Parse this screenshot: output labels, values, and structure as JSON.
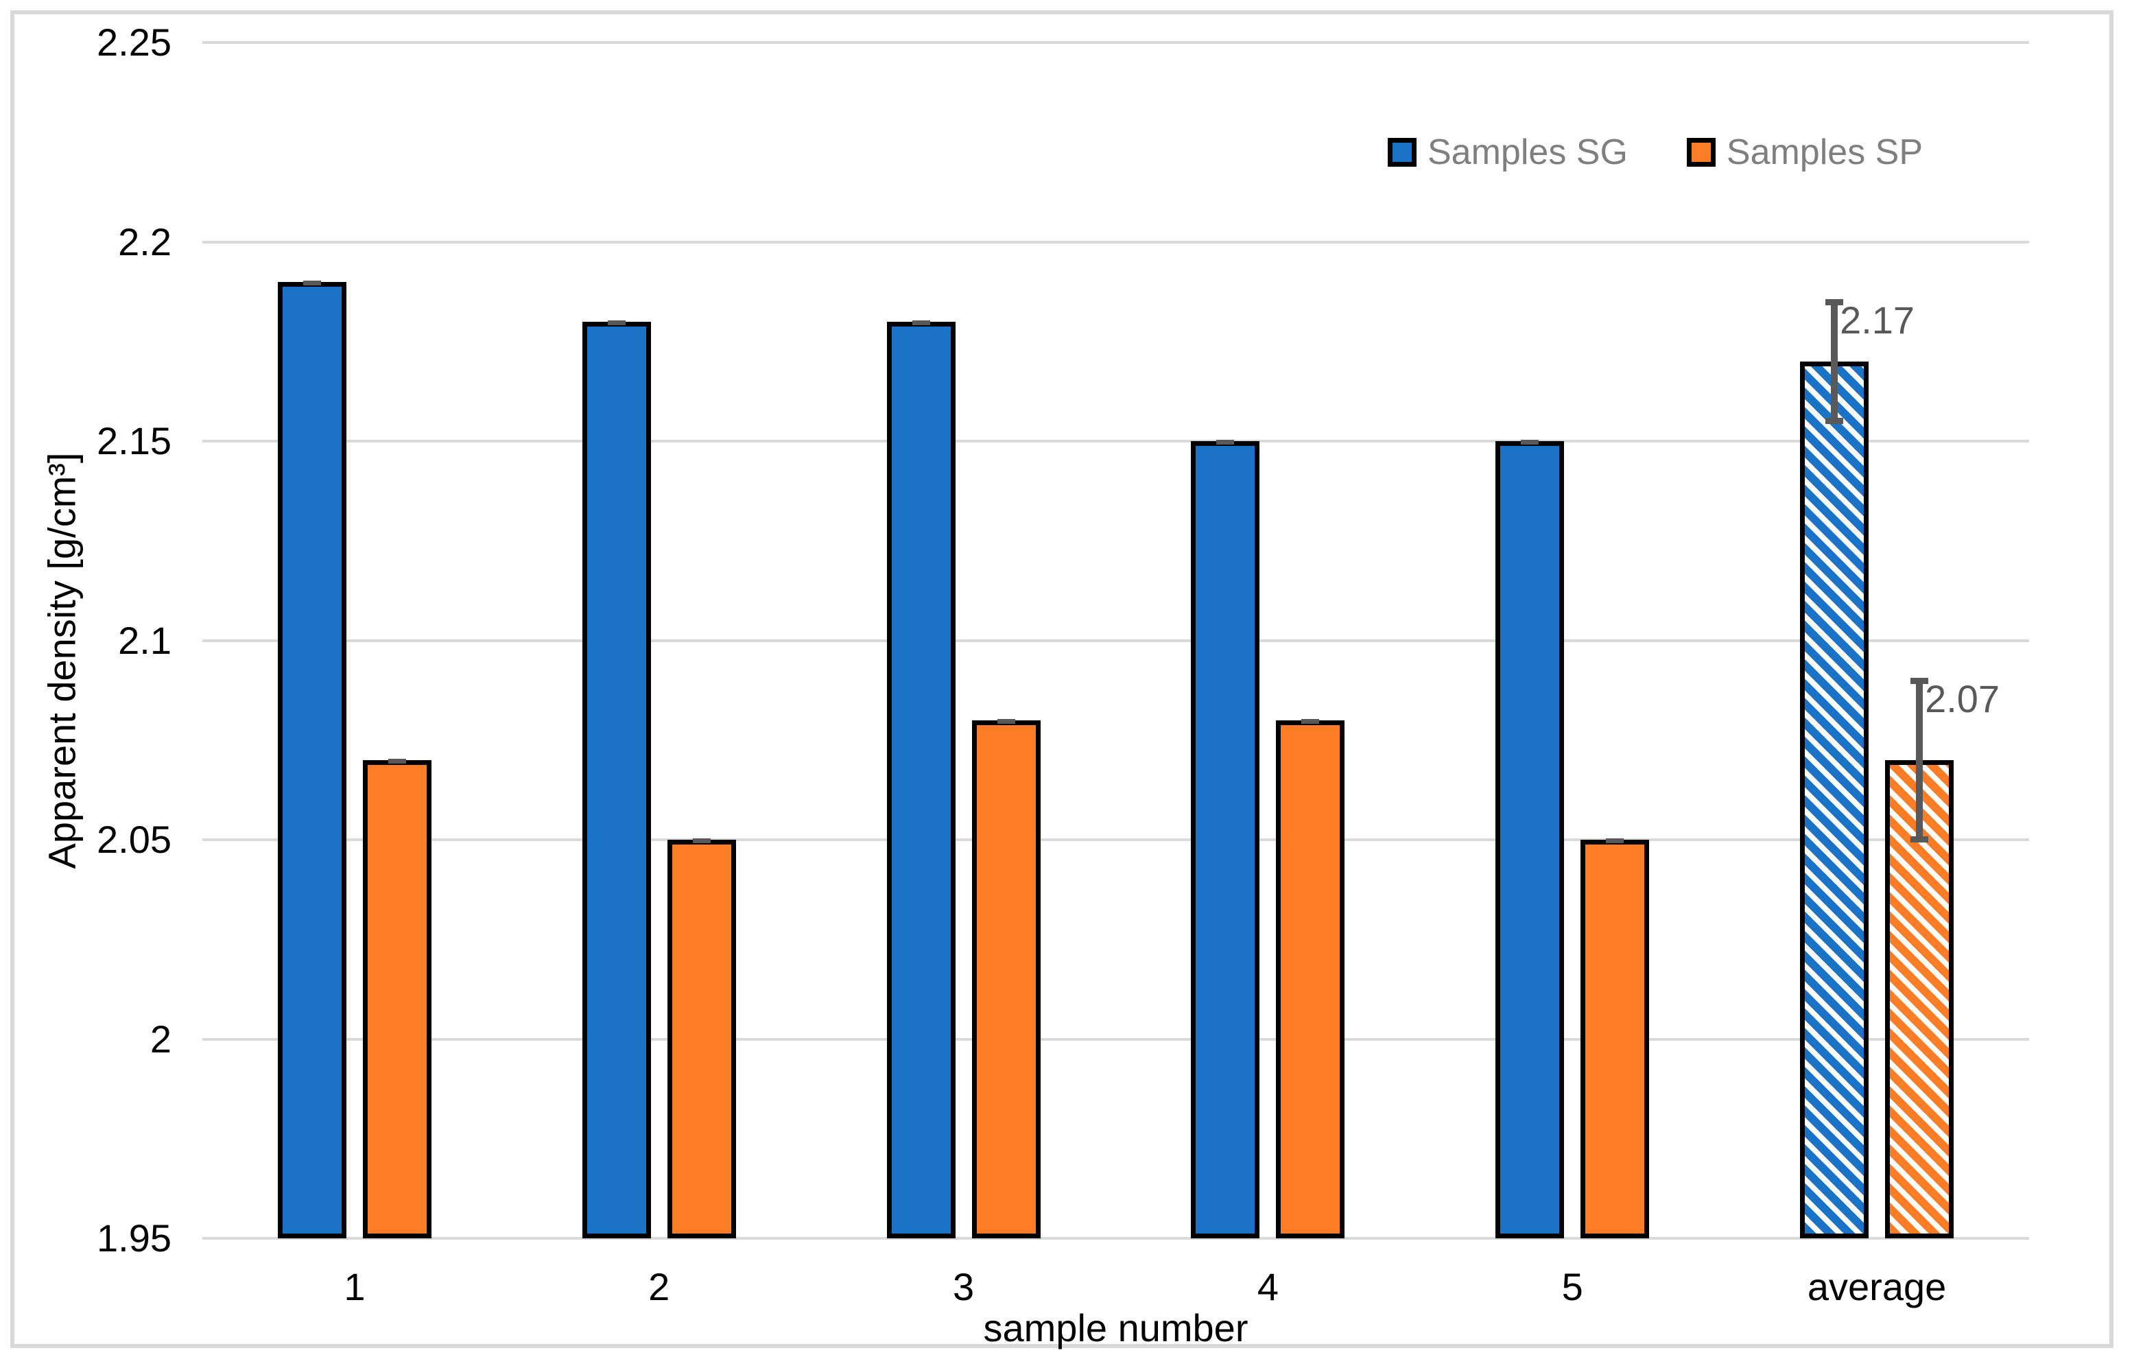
{
  "chart_data": {
    "type": "bar",
    "title": "",
    "xlabel": "sample number",
    "ylabel": "Apparent density [g/cm³]",
    "categories": [
      "1",
      "2",
      "3",
      "4",
      "5",
      "average"
    ],
    "series": [
      {
        "name": "Samples SG",
        "color": "#1B73C8",
        "values": [
          2.19,
          2.18,
          2.18,
          2.15,
          2.15,
          2.17
        ]
      },
      {
        "name": "Samples SP",
        "color": "#FC7D26",
        "values": [
          2.07,
          2.05,
          2.08,
          2.08,
          2.05,
          2.07
        ]
      }
    ],
    "hatched_category": "average",
    "hatch_pattern": "diagonal-stripes",
    "ylim": [
      1.95,
      2.25
    ],
    "ytick_step": 0.05,
    "yticks": [
      {
        "label": "2.25",
        "value": 2.25
      },
      {
        "label": "2.2",
        "value": 2.2
      },
      {
        "label": "2.15",
        "value": 2.15
      },
      {
        "label": "2.1",
        "value": 2.1
      },
      {
        "label": "2.05",
        "value": 2.05
      },
      {
        "label": "2",
        "value": 2.0
      },
      {
        "label": "1.95",
        "value": 1.95
      }
    ],
    "grid": true,
    "legend_position": "top-right",
    "error_bars": [
      {
        "series": "Samples SG",
        "category": "average",
        "upper": 2.185,
        "lower": 2.155,
        "label": "2.17"
      },
      {
        "series": "Samples SP",
        "category": "average",
        "upper": 2.09,
        "lower": 2.05,
        "label": "2.07"
      }
    ],
    "individual_error_caps": true,
    "colors": {
      "gridline": "#D9D9D9",
      "chart_border": "#D9D9D9",
      "bar_border": "#000000",
      "error_bar": "#595959",
      "tick_label": "#000000",
      "legend_text": "#7F7F7F",
      "data_label": "#595959"
    }
  }
}
